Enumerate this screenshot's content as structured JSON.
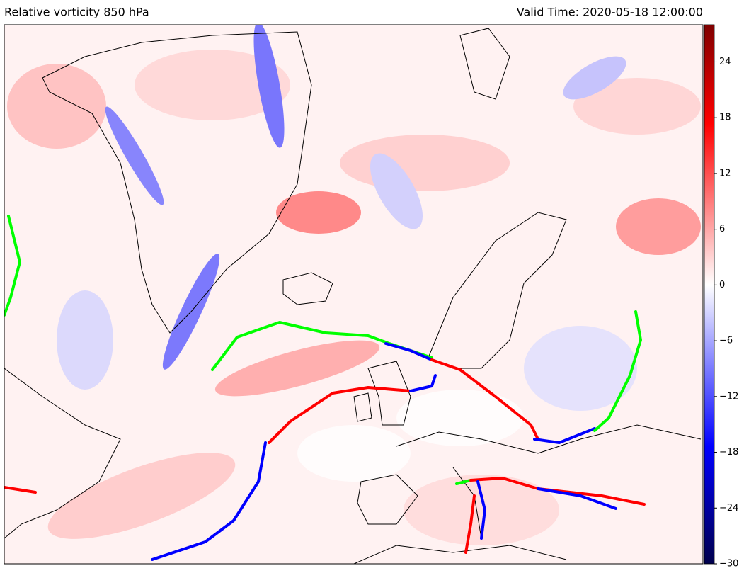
{
  "header": {
    "title": "Relative vorticity 850 hPa",
    "valid_time": "Valid Time: 2020-05-18 12:00:00"
  },
  "colorbar": {
    "lim": [
      -30,
      28
    ],
    "ticks": [
      {
        "value": -30,
        "label": "−30"
      },
      {
        "value": -24,
        "label": "−24"
      },
      {
        "value": -18,
        "label": "−18"
      },
      {
        "value": -12,
        "label": "−12"
      },
      {
        "value": -6,
        "label": "−6"
      },
      0,
      6,
      12,
      18,
      24
    ]
  }
}
